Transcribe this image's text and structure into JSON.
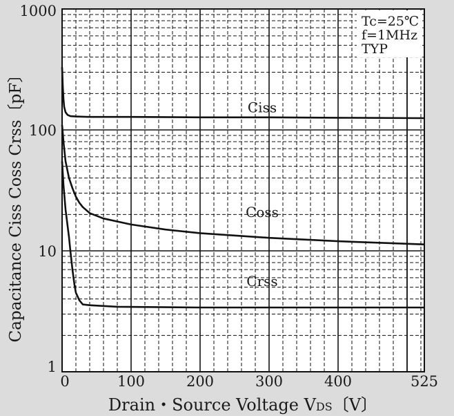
{
  "chart_data": {
    "type": "line",
    "xlabel_main": "Drain・Source Voltage",
    "xlabel_symbol": "V",
    "xlabel_subscript": "DS",
    "xlabel_unit": "〔V〕",
    "ylabel": "Capacitance Ciss Coss Crss〔pF〕",
    "x_ticks": [
      "0",
      "100",
      "200",
      "300",
      "400",
      "525"
    ],
    "x_tick_values": [
      0,
      100,
      200,
      300,
      400,
      525
    ],
    "y_ticks": [
      "1",
      "10",
      "100",
      "1000"
    ],
    "y_tick_values": [
      1,
      10,
      100,
      1000
    ],
    "xlim": [
      0,
      525
    ],
    "ylim": [
      1,
      1000
    ],
    "y_scale": "log",
    "grid": true,
    "conditions": [
      "Tc=25℃",
      "f=1MHz",
      "TYP"
    ],
    "series": [
      {
        "name": "Ciss",
        "x": [
          0,
          1,
          2,
          3,
          5,
          8,
          12,
          20,
          40,
          100,
          200,
          300,
          400,
          525
        ],
        "y": [
          330,
          230,
          180,
          155,
          140,
          133,
          130,
          129,
          128,
          128,
          127,
          127,
          126,
          125
        ]
      },
      {
        "name": "Coss",
        "x": [
          0,
          2,
          5,
          10,
          15,
          20,
          25,
          30,
          40,
          60,
          100,
          150,
          200,
          300,
          400,
          525
        ],
        "y": [
          110,
          80,
          55,
          40,
          33,
          28,
          25,
          23,
          20.5,
          18.5,
          16.5,
          15,
          14,
          12.8,
          12,
          11.3
        ]
      },
      {
        "name": "Crss",
        "x": [
          0,
          2,
          5,
          8,
          10,
          12,
          15,
          18,
          20,
          25,
          30,
          40,
          80,
          200,
          300,
          400,
          525
        ],
        "y": [
          55,
          35,
          22,
          16,
          13,
          10,
          7,
          5.2,
          4.5,
          3.9,
          3.6,
          3.55,
          3.45,
          3.4,
          3.4,
          3.4,
          3.4
        ]
      }
    ]
  }
}
